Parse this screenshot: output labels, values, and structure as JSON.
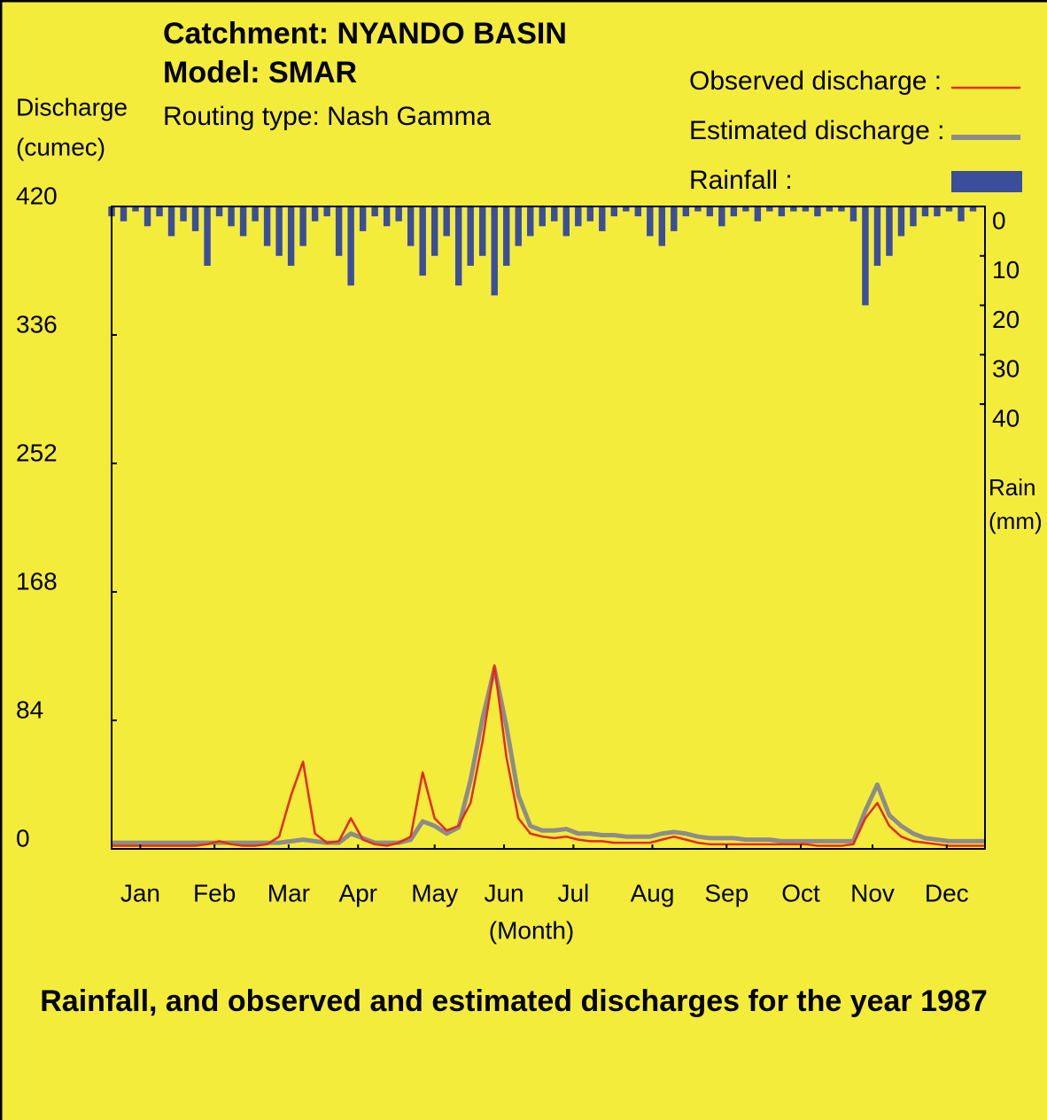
{
  "chart_data": {
    "type": "line",
    "title": [
      "Catchment:  NYANDO BASIN",
      "Model:  SMAR"
    ],
    "subtitle": "Routing type:  Nash Gamma",
    "caption": "Rainfall, and observed and estimated discharges for the year  1987",
    "ylabel": [
      "Discharge",
      "(cumec)"
    ],
    "y2label": [
      "Rain",
      "(mm)"
    ],
    "xlabel": "(Month)",
    "x": [
      0,
      5,
      10,
      15,
      20,
      25,
      30,
      35,
      40,
      45,
      50,
      55,
      60,
      65,
      70,
      75,
      80,
      85,
      90,
      95,
      100,
      105,
      110,
      115,
      120,
      125,
      130,
      135,
      140,
      145,
      150,
      155,
      160,
      165,
      170,
      175,
      180,
      185,
      190,
      195,
      200,
      205,
      210,
      215,
      220,
      225,
      230,
      235,
      240,
      245,
      250,
      255,
      260,
      265,
      270,
      275,
      280,
      285,
      290,
      295,
      300,
      305,
      310,
      315,
      320,
      325,
      330,
      335,
      340,
      345,
      350,
      355,
      360,
      365
    ],
    "xlim": [
      0,
      365
    ],
    "xticks": [
      {
        "value": 12,
        "label": "Jan"
      },
      {
        "value": 43,
        "label": "Feb"
      },
      {
        "value": 74,
        "label": "Mar"
      },
      {
        "value": 103,
        "label": "Apr"
      },
      {
        "value": 135,
        "label": "May"
      },
      {
        "value": 164,
        "label": "Jun"
      },
      {
        "value": 193,
        "label": "Jul"
      },
      {
        "value": 226,
        "label": "Aug"
      },
      {
        "value": 257,
        "label": "Sep"
      },
      {
        "value": 288,
        "label": "Oct"
      },
      {
        "value": 318,
        "label": "Nov"
      },
      {
        "value": 349,
        "label": "Dec"
      }
    ],
    "ylim": [
      0,
      420
    ],
    "yticks": [
      0,
      84,
      168,
      252,
      336,
      420
    ],
    "y2lim": [
      130,
      0
    ],
    "y2ticks": [
      0,
      10,
      20,
      30,
      40
    ],
    "series": [
      {
        "name": "Observed discharge :",
        "color": "#e8281e",
        "axis": "y",
        "type": "line",
        "values": [
          2,
          2,
          2,
          2,
          2,
          2,
          2,
          2,
          3,
          5,
          3,
          2,
          2,
          3,
          8,
          35,
          57,
          10,
          4,
          5,
          20,
          6,
          3,
          2,
          4,
          8,
          50,
          20,
          12,
          15,
          30,
          70,
          120,
          60,
          20,
          10,
          8,
          7,
          8,
          6,
          5,
          5,
          4,
          4,
          4,
          4,
          6,
          8,
          6,
          4,
          3,
          3,
          3,
          3,
          3,
          3,
          3,
          3,
          3,
          2,
          2,
          2,
          3,
          20,
          30,
          15,
          8,
          5,
          4,
          3,
          2,
          2,
          2,
          2
        ]
      },
      {
        "name": "Estimated discharge :",
        "color": "#8c8c8c",
        "axis": "y",
        "type": "line",
        "values": [
          4,
          4,
          4,
          4,
          4,
          4,
          4,
          4,
          4,
          4,
          4,
          4,
          4,
          4,
          4,
          5,
          6,
          5,
          4,
          4,
          10,
          7,
          4,
          4,
          4,
          6,
          18,
          15,
          10,
          14,
          45,
          85,
          118,
          80,
          35,
          15,
          12,
          12,
          13,
          10,
          10,
          9,
          9,
          8,
          8,
          8,
          10,
          11,
          10,
          8,
          7,
          7,
          7,
          6,
          6,
          6,
          5,
          5,
          5,
          5,
          5,
          5,
          5,
          25,
          42,
          22,
          15,
          10,
          7,
          6,
          5,
          5,
          5,
          5
        ]
      },
      {
        "name": "Rainfall :",
        "color": "#3a4e9c",
        "axis": "y2",
        "type": "bar",
        "values": [
          2,
          3,
          1,
          4,
          2,
          6,
          3,
          5,
          12,
          2,
          4,
          6,
          3,
          8,
          10,
          12,
          8,
          3,
          2,
          10,
          16,
          5,
          2,
          4,
          3,
          8,
          14,
          10,
          6,
          16,
          12,
          10,
          18,
          12,
          8,
          6,
          4,
          3,
          6,
          4,
          3,
          5,
          2,
          1,
          2,
          6,
          8,
          5,
          2,
          1,
          2,
          4,
          2,
          1,
          3,
          1,
          2,
          1,
          1,
          2,
          1,
          1,
          3,
          20,
          12,
          10,
          6,
          4,
          2,
          2,
          1,
          3,
          1,
          0
        ]
      }
    ]
  }
}
